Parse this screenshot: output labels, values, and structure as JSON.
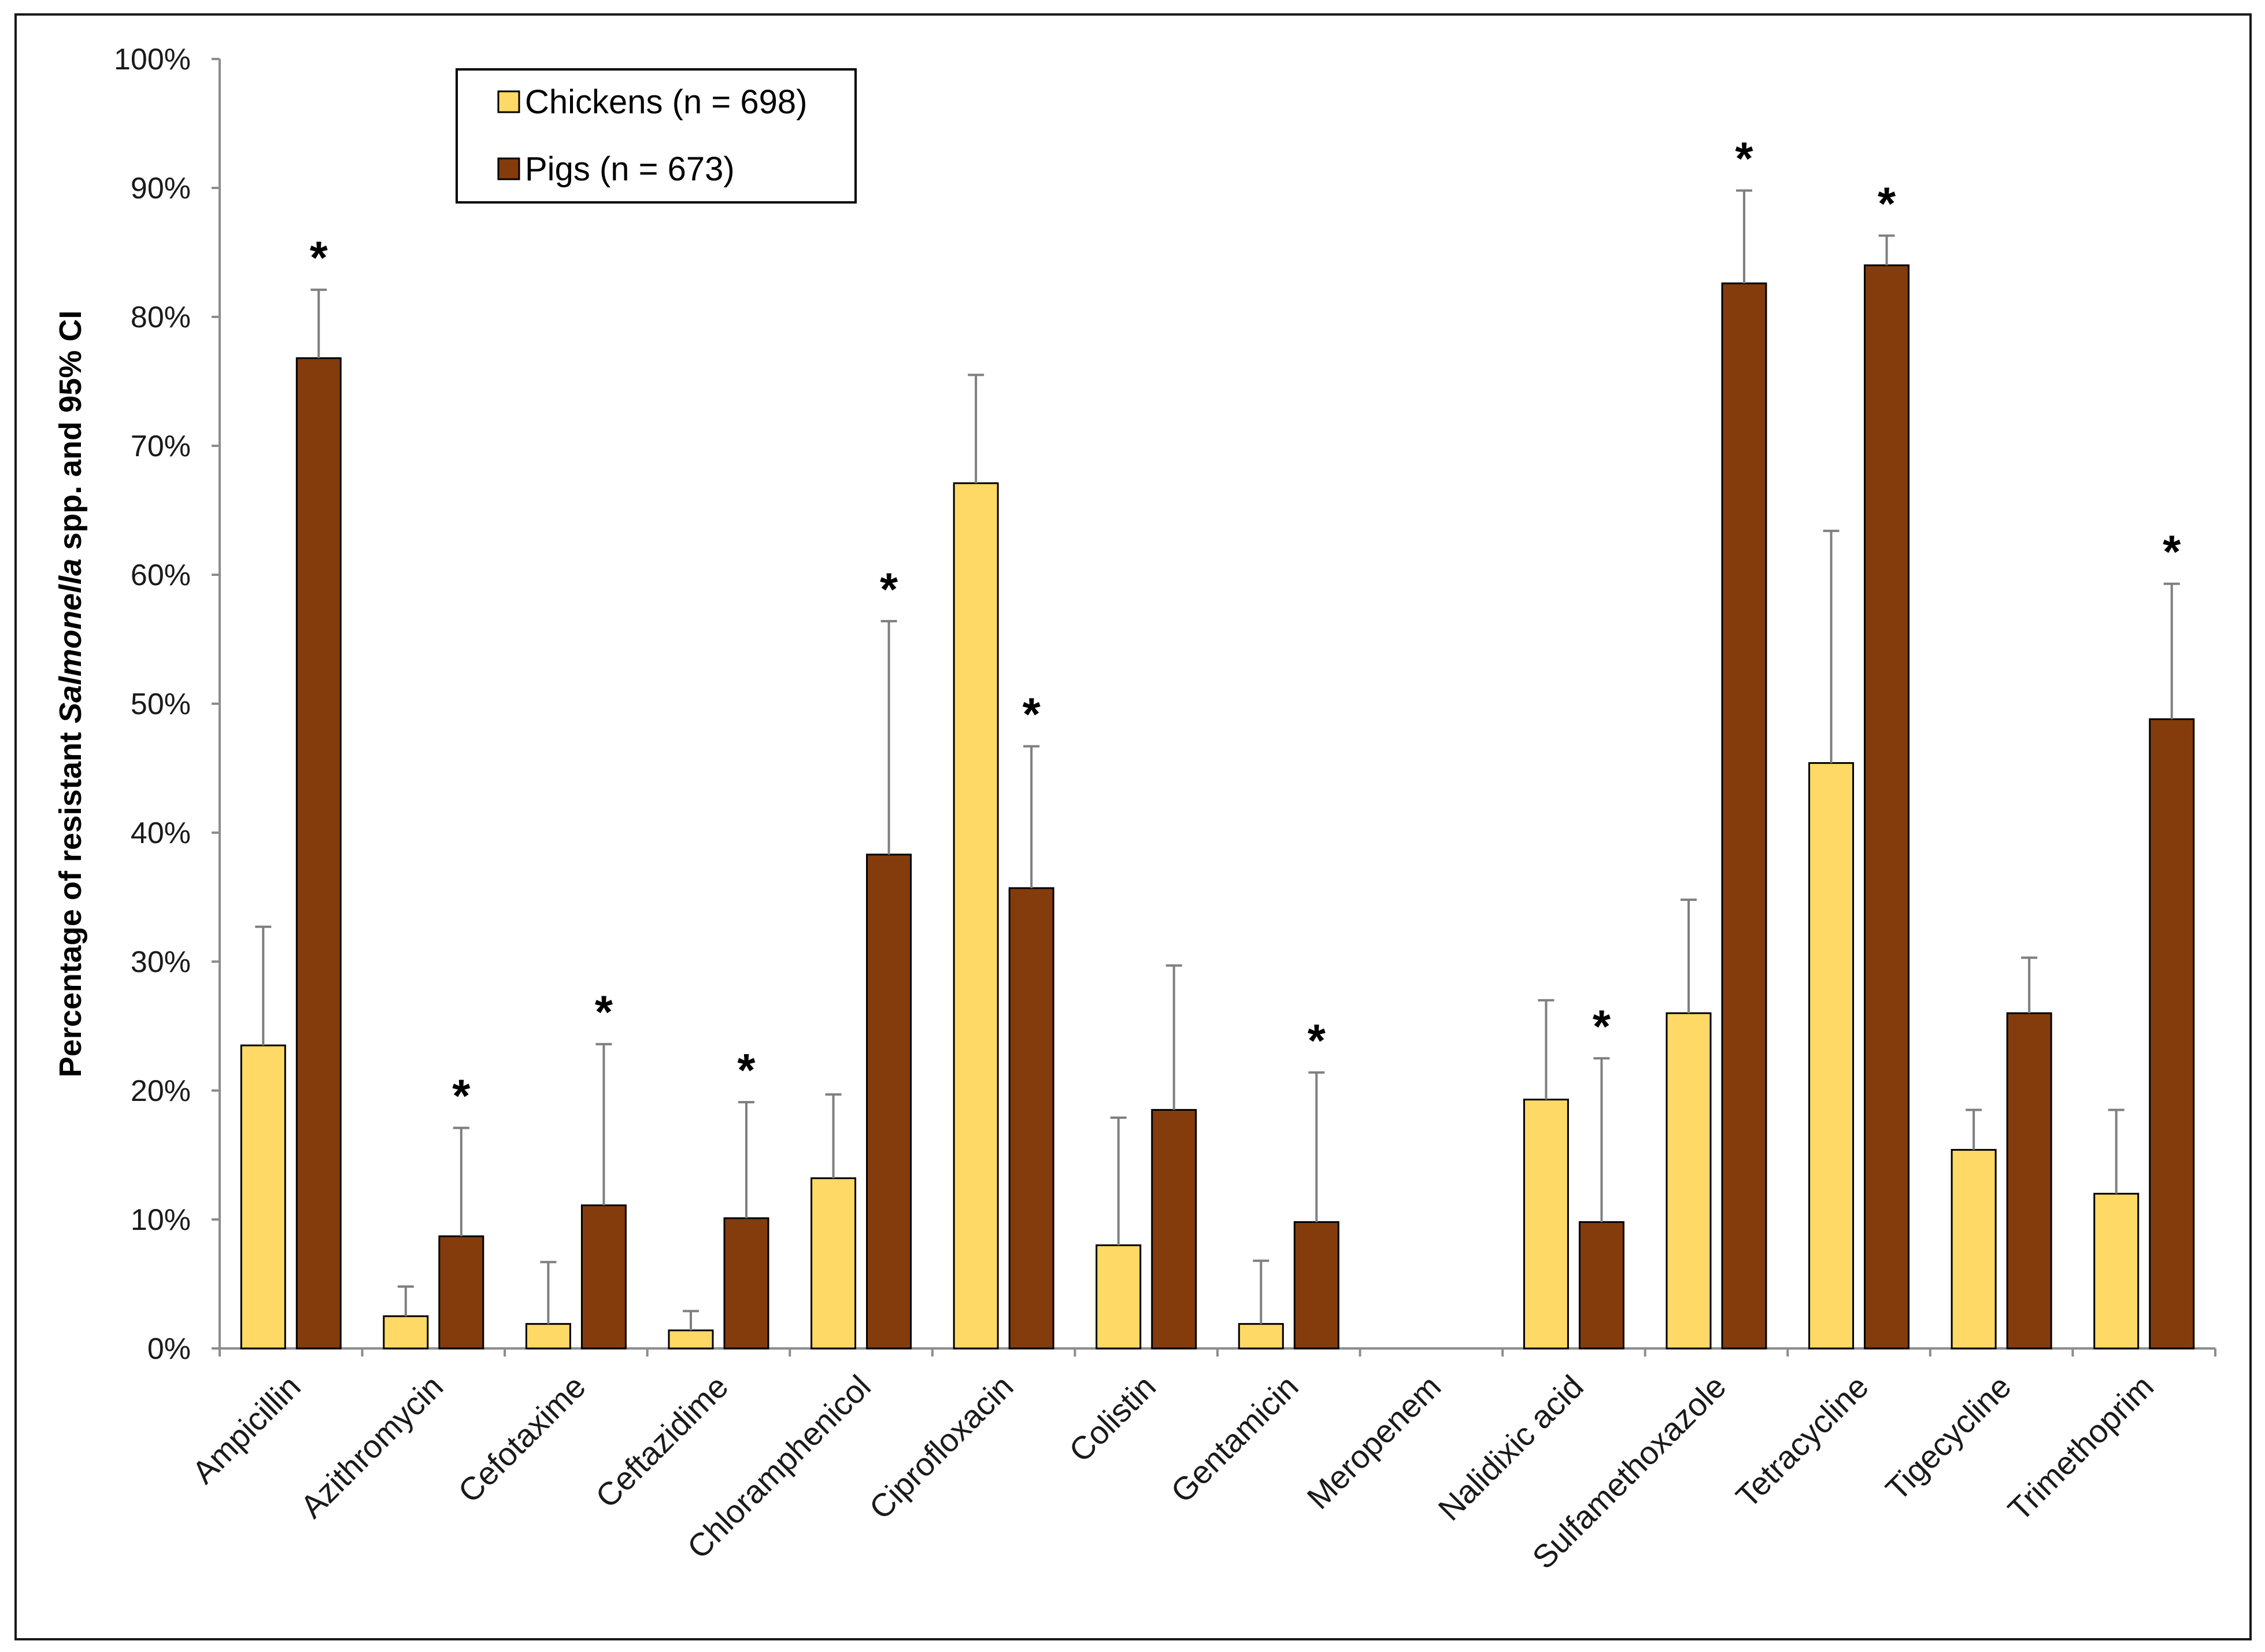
{
  "chart_data": {
    "type": "bar",
    "ylabel_prefix": "Percentage of resistant ",
    "ylabel_italic": "Salmonella",
    "ylabel_suffix": " spp. and 95% CI",
    "ylim": [
      0,
      100
    ],
    "yticks": [
      "0%",
      "10%",
      "20%",
      "30%",
      "40%",
      "50%",
      "60%",
      "70%",
      "80%",
      "90%",
      "100%"
    ],
    "categories": [
      "Ampicillin",
      "Azithromycin",
      "Cefotaxime",
      "Ceftazidime",
      "Chloramphenicol",
      "Ciprofloxacin",
      "Colistin",
      "Gentamicin",
      "Meropenem",
      "Nalidixic acid",
      "Sulfamethoxazole",
      "Tetracycline",
      "Tigecycline",
      "Trimethoprim"
    ],
    "series": [
      {
        "name": "Chickens (n = 698)",
        "color": "#FFD966",
        "values": [
          23.5,
          2.5,
          1.9,
          1.4,
          13.2,
          67.1,
          8.0,
          1.9,
          0,
          19.3,
          26.0,
          45.4,
          15.4,
          12.0
        ],
        "ci_upper": [
          32.7,
          4.8,
          6.7,
          2.9,
          19.7,
          75.5,
          17.9,
          6.8,
          0,
          27.0,
          34.8,
          63.4,
          18.5,
          18.5
        ]
      },
      {
        "name": "Pigs (n = 673)",
        "color": "#843C0C",
        "values": [
          76.8,
          8.7,
          11.1,
          10.1,
          38.3,
          35.7,
          18.5,
          9.8,
          0,
          9.8,
          82.6,
          84.0,
          26.0,
          48.8
        ],
        "ci_upper": [
          82.1,
          17.1,
          23.6,
          19.1,
          56.4,
          46.7,
          29.7,
          21.4,
          0,
          22.5,
          89.8,
          86.3,
          30.3,
          59.3
        ]
      }
    ],
    "significant": [
      true,
      true,
      true,
      true,
      true,
      true,
      false,
      true,
      false,
      true,
      true,
      true,
      false,
      true
    ],
    "significance_marker": "*",
    "legend_position": "top-left",
    "grid": false
  }
}
